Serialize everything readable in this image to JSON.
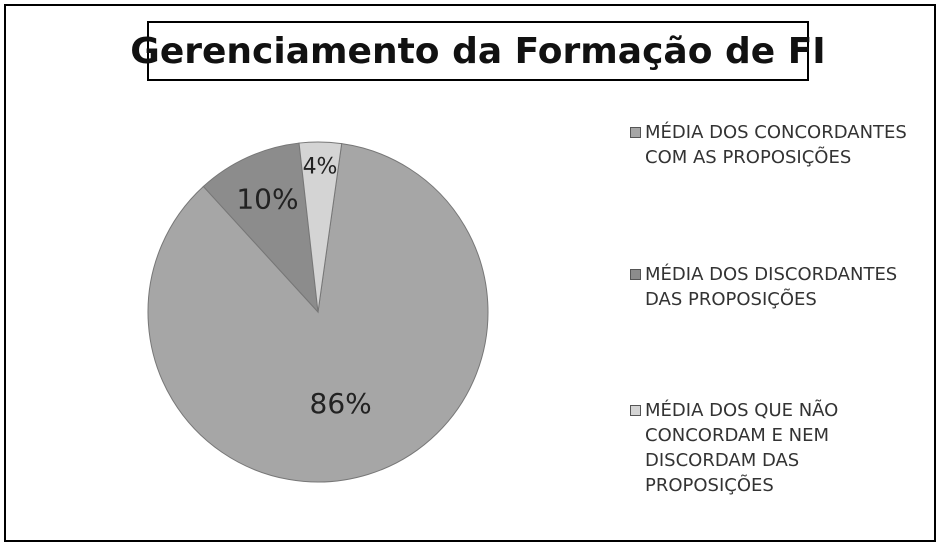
{
  "chart_data": {
    "type": "pie",
    "title": "Gerenciamento da Formação de FI",
    "categories": [
      "MÉDIA DOS CONCORDANTES COM AS PROPOSIÇÕES",
      "MÉDIA DOS DISCORDANTES DAS PROPOSIÇÕES",
      "MÉDIA DOS QUE NÃO CONCORDAM E NEM DISCORDAM DAS PROPOSIÇÕES"
    ],
    "values": [
      86,
      10,
      4
    ],
    "value_labels": [
      "86%",
      "10%",
      "4%"
    ],
    "colors": [
      "#a6a6a6",
      "#8c8c8c",
      "#d4d4d4"
    ],
    "legend": "right"
  }
}
